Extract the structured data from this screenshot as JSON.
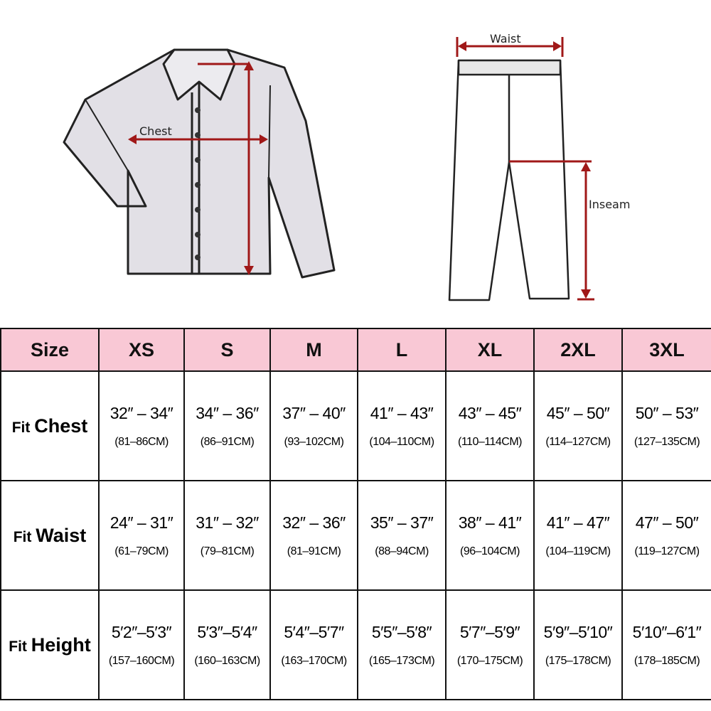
{
  "diagram": {
    "shirt_label": "Chest",
    "pants_waist_label": "Waist",
    "pants_inseam_label": "Inseam",
    "arrow_color": "#a01818"
  },
  "table": {
    "header_color": "#f9c8d5",
    "corner": "Size",
    "sizes": [
      "XS",
      "S",
      "M",
      "L",
      "XL",
      "2XL",
      "3XL"
    ],
    "rows": [
      {
        "prefix": "Fit",
        "label": "Chest",
        "imperial": [
          "32″ – 34″",
          "34″ – 36″",
          "37″ – 40″",
          "41″ – 43″",
          "43″ – 45″",
          "45″ – 50″",
          "50″ – 53″"
        ],
        "metric": [
          "(81–86CM)",
          "(86–91CM)",
          "(93–102CM)",
          "(104–110CM)",
          "(110–114CM)",
          "(114–127CM)",
          "(127–135CM)"
        ]
      },
      {
        "prefix": "Fit",
        "label": "Waist",
        "imperial": [
          "24″ – 31″",
          "31″ – 32″",
          "32″ – 36″",
          "35″ – 37″",
          "38″ – 41″",
          "41″ – 47″",
          "47″ – 50″"
        ],
        "metric": [
          "(61–79CM)",
          "(79–81CM)",
          "(81–91CM)",
          "(88–94CM)",
          "(96–104CM)",
          "(104–119CM)",
          "(119–127CM)"
        ]
      },
      {
        "prefix": "Fit",
        "label": "Height",
        "imperial": [
          "5′2″–5′3″",
          "5′3″–5′4″",
          "5′4″–5′7″",
          "5′5″–5′8″",
          "5′7″–5′9″",
          "5′9″–5′10″",
          "5′10″–6′1″"
        ],
        "metric": [
          "(157–160CM)",
          "(160–163CM)",
          "(163–170CM)",
          "(165–173CM)",
          "(170–175CM)",
          "(175–178CM)",
          "(178–185CM)"
        ]
      }
    ]
  }
}
